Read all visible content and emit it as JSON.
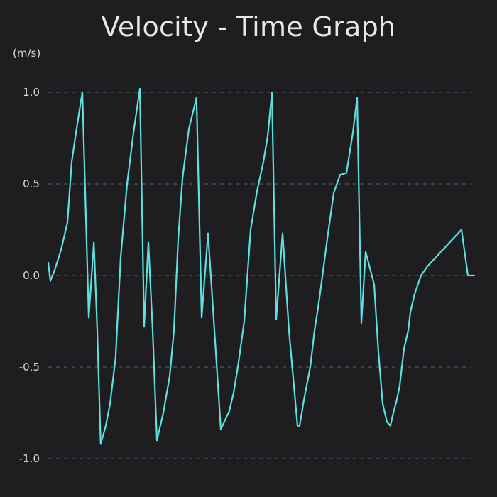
{
  "chart_data": {
    "type": "line",
    "title": "Velocity - Time Graph",
    "ylabel": "(m/s)",
    "xlabel": "",
    "ylim": [
      -1.0,
      1.0
    ],
    "yticks": [
      "1.0",
      "0.5",
      "0.0",
      "-0.5",
      "-1.0"
    ],
    "ytick_values": [
      1.0,
      0.5,
      0.0,
      -0.5,
      -1.0
    ],
    "grid": true,
    "xlim": [
      0,
      100
    ],
    "series": [
      {
        "color": "#5ee0e0",
        "x": [
          0.0,
          0.5,
          1.5,
          3.0,
          4.5,
          5.5,
          6.5,
          8.0,
          9.5,
          10.7,
          11.5,
          12.3,
          13.5,
          14.5,
          15.8,
          17.0,
          18.5,
          20.0,
          21.5,
          22.5,
          23.5,
          24.5,
          25.5,
          27.0,
          28.5,
          29.5,
          30.5,
          31.5,
          33.0,
          34.8,
          36.0,
          37.5,
          39.0,
          40.5,
          42.5,
          43.5,
          44.5,
          46.0,
          47.5,
          49.0,
          50.5,
          51.5,
          52.5,
          53.5,
          55.0,
          56.5,
          58.5,
          59.0,
          60.0,
          61.5,
          62.5,
          63.5,
          65.5,
          67.0,
          68.5,
          70.0,
          71.5,
          72.5,
          73.5,
          74.5,
          76.5,
          77.5,
          78.5,
          79.5,
          80.3,
          81.0,
          81.8,
          82.5,
          83.0,
          83.5,
          84.5,
          85.0,
          86.0,
          87.5,
          89.0,
          91.0,
          93.0,
          95.0,
          97.0,
          98.5,
          100.0
        ],
        "y": [
          0.07,
          -0.03,
          0.03,
          0.14,
          0.29,
          0.62,
          0.78,
          1.0,
          -0.23,
          0.18,
          -0.3,
          -0.92,
          -0.82,
          -0.7,
          -0.45,
          0.1,
          0.5,
          0.78,
          1.02,
          -0.28,
          0.18,
          -0.3,
          -0.9,
          -0.75,
          -0.55,
          -0.3,
          0.2,
          0.53,
          0.8,
          0.97,
          -0.23,
          0.23,
          -0.3,
          -0.84,
          -0.74,
          -0.64,
          -0.5,
          -0.25,
          0.25,
          0.46,
          0.62,
          0.76,
          1.0,
          -0.24,
          0.23,
          -0.3,
          -0.82,
          -0.82,
          -0.68,
          -0.5,
          -0.3,
          -0.15,
          0.2,
          0.45,
          0.55,
          0.56,
          0.78,
          0.97,
          -0.26,
          0.13,
          -0.05,
          -0.42,
          -0.7,
          -0.8,
          -0.82,
          -0.75,
          -0.68,
          -0.6,
          -0.5,
          -0.4,
          -0.3,
          -0.2,
          -0.1,
          0.0,
          0.05,
          0.1,
          0.15,
          0.2,
          0.25,
          0.0,
          0.0
        ]
      }
    ]
  }
}
